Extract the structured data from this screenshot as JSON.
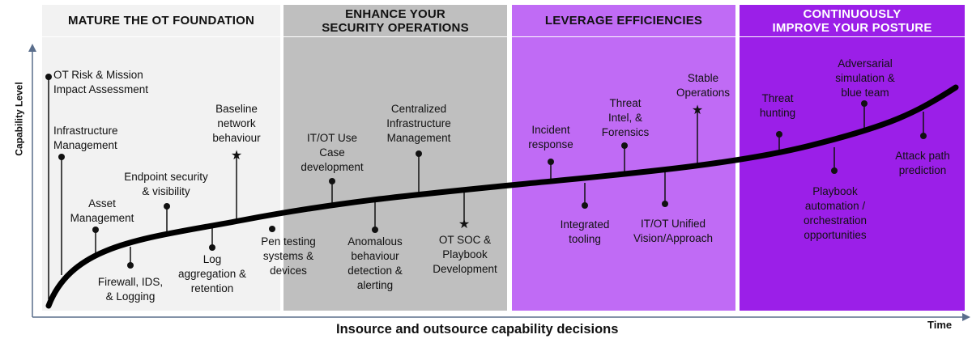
{
  "phases": [
    {
      "title": "MATURE THE OT FOUNDATION"
    },
    {
      "title": "ENHANCE YOUR SECURITY OPERATIONS",
      "line1": "ENHANCE YOUR",
      "line2": "SECURITY OPERATIONS"
    },
    {
      "title": "LEVERAGE EFFICIENCIES"
    },
    {
      "title": "CONTINUOUSLY IMPROVE YOUR POSTURE",
      "line1": "CONTINUOUSLY",
      "line2": "IMPROVE YOUR POSTURE"
    }
  ],
  "axes": {
    "y_label": "Capability Level",
    "x_label": "Insource and outsource capability decisions",
    "x_end_label": "Time"
  },
  "milestones": [
    {
      "id": "ot-risk",
      "lines": [
        "OT Risk & Mission",
        "Impact Assessment"
      ],
      "marker": "dot"
    },
    {
      "id": "infra-mgmt",
      "lines": [
        "Infrastructure",
        "Management"
      ],
      "marker": "dot"
    },
    {
      "id": "asset-mgmt",
      "lines": [
        "Asset",
        "Management"
      ],
      "marker": "dot"
    },
    {
      "id": "firewall",
      "lines": [
        "Firewall, IDS,",
        "& Logging"
      ],
      "marker": "dot"
    },
    {
      "id": "endpoint",
      "lines": [
        "Endpoint security",
        "& visibility"
      ],
      "marker": "dot"
    },
    {
      "id": "log-agg",
      "lines": [
        "Log",
        "aggregation &",
        "retention"
      ],
      "marker": "dot"
    },
    {
      "id": "baseline",
      "lines": [
        "Baseline",
        "network",
        "behaviour"
      ],
      "marker": "star"
    },
    {
      "id": "pen-testing",
      "lines": [
        "Pen testing",
        "systems &",
        "devices"
      ],
      "marker": "dot"
    },
    {
      "id": "itot-use-case",
      "lines": [
        "IT/OT Use",
        "Case",
        "development"
      ],
      "marker": "dot"
    },
    {
      "id": "anomalous",
      "lines": [
        "Anomalous",
        "behaviour",
        "detection &",
        "alerting"
      ],
      "marker": "dot"
    },
    {
      "id": "centralized",
      "lines": [
        "Centralized",
        "Infrastructure",
        "Management"
      ],
      "marker": "dot"
    },
    {
      "id": "ot-soc",
      "lines": [
        "OT SOC &",
        "Playbook",
        "Development"
      ],
      "marker": "star"
    },
    {
      "id": "incident",
      "lines": [
        "Incident",
        "response"
      ],
      "marker": "dot"
    },
    {
      "id": "integrated",
      "lines": [
        "Integrated",
        "tooling"
      ],
      "marker": "dot"
    },
    {
      "id": "threat-intel",
      "lines": [
        "Threat",
        "Intel, &",
        "Forensics"
      ],
      "marker": "dot"
    },
    {
      "id": "itot-unified",
      "lines": [
        "IT/OT Unified",
        "Vision/Approach"
      ],
      "marker": "dot"
    },
    {
      "id": "stable-ops",
      "lines": [
        "Stable",
        "Operations"
      ],
      "marker": "star"
    },
    {
      "id": "threat-hunting",
      "lines": [
        "Threat",
        "hunting"
      ],
      "marker": "dot"
    },
    {
      "id": "playbook-auto",
      "lines": [
        "Playbook",
        "automation /",
        "orchestration",
        "opportunities"
      ],
      "marker": "dot"
    },
    {
      "id": "adversarial",
      "lines": [
        "Adversarial",
        "simulation &",
        "blue team"
      ],
      "marker": "dot"
    },
    {
      "id": "attack-path",
      "lines": [
        "Attack path",
        "prediction"
      ],
      "marker": "dot"
    }
  ],
  "colors": {
    "phase1_bg": "#f2f2f2",
    "phase1_header": "#f2f2f2",
    "phase2_bg": "#bfbfbf",
    "phase2_header": "#bfbfbf",
    "phase3_bg": "#c06bf5",
    "phase3_header": "#c06bf5",
    "phase4_bg": "#9b1fe8",
    "phase4_header": "#9b1fe8",
    "curve": "#000000"
  }
}
